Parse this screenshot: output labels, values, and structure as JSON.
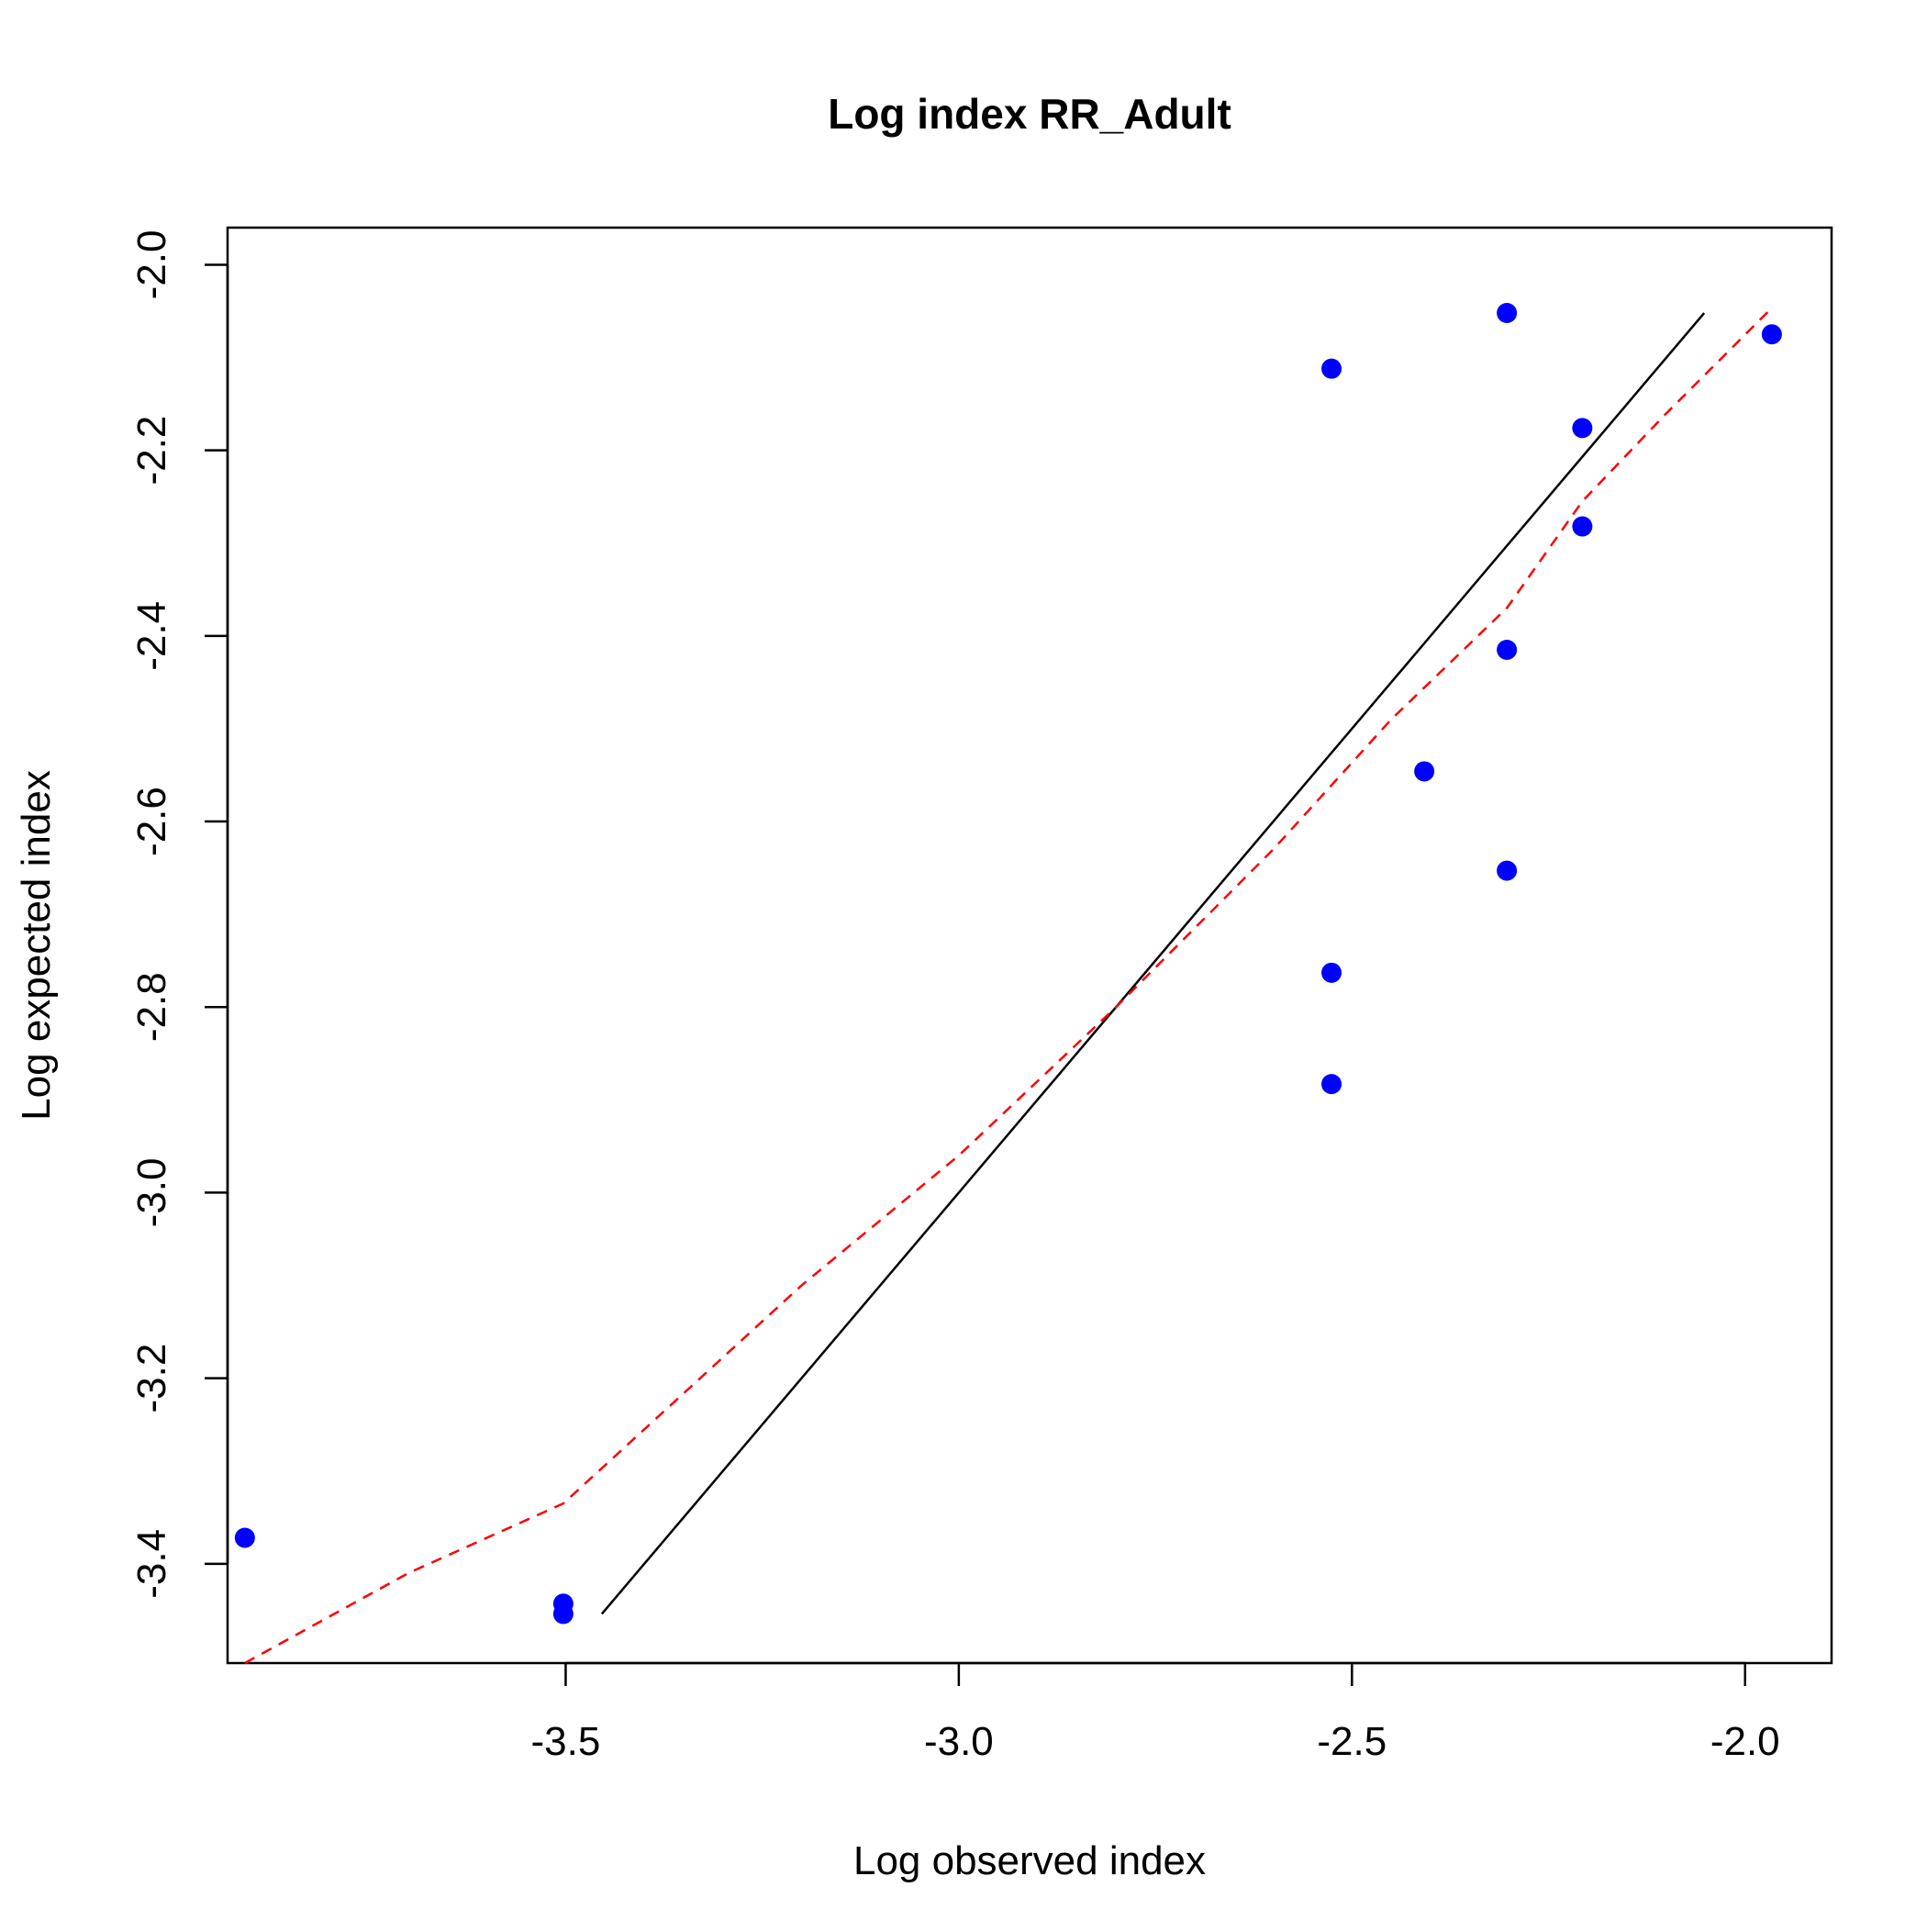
{
  "chart_data": {
    "type": "scatter",
    "title": "Log index RR_Adult",
    "xlabel": "Log observed index",
    "ylabel": "Log expected index",
    "xlim": [
      -3.93,
      -1.89
    ],
    "ylim": [
      -3.507,
      -1.96
    ],
    "x_ticks": [
      -3.5,
      -3.0,
      -2.5,
      -2.0
    ],
    "x_tick_labels": [
      "-3.5",
      "-3.0",
      "-2.5",
      "-2.0"
    ],
    "y_ticks": [
      -3.4,
      -3.2,
      -3.0,
      -2.8,
      -2.6,
      -2.4,
      -2.2,
      -2.0
    ],
    "y_tick_labels": [
      "-3.4",
      "-3.2",
      "-3.0",
      "-2.8",
      "-2.6",
      "-2.4",
      "-2.2",
      "-2.0"
    ],
    "grid": false,
    "legend": "none",
    "series": [
      {
        "kind": "points",
        "color": "#0000ff",
        "x": [
          -3.908,
          -3.503,
          -3.503,
          -2.526,
          -2.526,
          -2.526,
          -2.408,
          -2.303,
          -2.303,
          -2.303,
          -2.207,
          -2.207,
          -1.966
        ],
        "y": [
          -3.372,
          -3.443,
          -3.454,
          -2.112,
          -2.763,
          -2.883,
          -2.546,
          -2.052,
          -2.415,
          -2.653,
          -2.176,
          -2.282,
          -2.075
        ]
      },
      {
        "kind": "line",
        "style": "solid",
        "color": "#000000",
        "x": [
          -3.454,
          -2.052
        ],
        "y": [
          -3.454,
          -2.052
        ]
      },
      {
        "kind": "line",
        "style": "dashed",
        "color": "#ff0000",
        "x": [
          -3.908,
          -3.7,
          -3.503,
          -3.2,
          -3.0,
          -2.8,
          -2.6,
          -2.45,
          -2.303,
          -2.207,
          -2.1,
          -1.97
        ],
        "y": [
          -3.507,
          -3.41,
          -3.335,
          -3.1,
          -2.96,
          -2.8,
          -2.63,
          -2.49,
          -2.37,
          -2.255,
          -2.16,
          -2.05
        ]
      }
    ]
  }
}
